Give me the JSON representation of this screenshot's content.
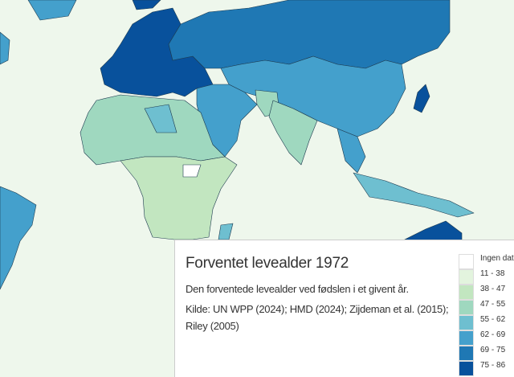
{
  "map": {
    "title": "Forventet levealder 1972",
    "description": "Den forventede levealder ved fødslen i et givent år.",
    "source": "Kilde: UN WPP (2024); HMD (2024); Zijdeman et al. (2015); Riley (2005)"
  },
  "legend": [
    {
      "label": "Ingen data",
      "color": "#ffffff"
    },
    {
      "label": "11 - 38",
      "color": "#e3f4de"
    },
    {
      "label": "38 - 47",
      "color": "#c2e6c0"
    },
    {
      "label": "47 - 55",
      "color": "#9fd8bf"
    },
    {
      "label": "55 - 62",
      "color": "#6ebfd0"
    },
    {
      "label": "62 - 69",
      "color": "#44a0cc"
    },
    {
      "label": "69 - 75",
      "color": "#1f78b4"
    },
    {
      "label": "75 - 86",
      "color": "#08519c"
    }
  ]
}
